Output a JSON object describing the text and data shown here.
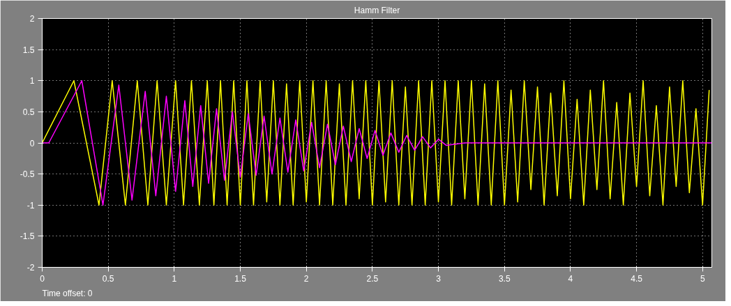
{
  "chart_data": {
    "type": "line",
    "title": "Hamm Filter",
    "annotations": [
      "Time offset:  0"
    ],
    "xlim": [
      0,
      5.07
    ],
    "ylim": [
      -2,
      2
    ],
    "xticks": [
      0,
      0.5,
      1,
      1.5,
      2,
      2.5,
      3,
      3.5,
      4,
      4.5,
      5
    ],
    "yticks": [
      -2,
      -1.5,
      -1,
      -0.5,
      0,
      0.5,
      1,
      1.5,
      2
    ],
    "grid": true,
    "line_style": "solid",
    "marker": "none",
    "series": [
      {
        "color": "#ffff00",
        "x": [
          0,
          0.24,
          0.43,
          0.53,
          0.63,
          0.72,
          0.8,
          0.87,
          0.94,
          1.01,
          1.07,
          1.13,
          1.19,
          1.25,
          1.3,
          1.35,
          1.4,
          1.45,
          1.5,
          1.55,
          1.6,
          1.65,
          1.7,
          1.75,
          1.8,
          1.85,
          1.9,
          1.95,
          2.0,
          2.05,
          2.1,
          2.15,
          2.2,
          2.25,
          2.3,
          2.35,
          2.4,
          2.45,
          2.5,
          2.55,
          2.6,
          2.65,
          2.7,
          2.75,
          2.8,
          2.85,
          2.9,
          2.95,
          3.0,
          3.05,
          3.1,
          3.15,
          3.2,
          3.25,
          3.3,
          3.35,
          3.4,
          3.45,
          3.5,
          3.55,
          3.6,
          3.65,
          3.7,
          3.75,
          3.8,
          3.85,
          3.9,
          3.95,
          4.0,
          4.05,
          4.1,
          4.15,
          4.2,
          4.25,
          4.3,
          4.35,
          4.4,
          4.45,
          4.5,
          4.55,
          4.6,
          4.65,
          4.7,
          4.75,
          4.8,
          4.85,
          4.9,
          4.95,
          5.0,
          5.05
        ],
        "values": [
          0,
          1,
          -1,
          1,
          -1,
          1,
          -1,
          1,
          -1,
          1,
          -1,
          1,
          -1,
          1,
          -1,
          1,
          -1,
          1,
          -1,
          1,
          -1,
          1,
          -0.95,
          1,
          -1,
          0.95,
          -1,
          1,
          -0.95,
          1,
          -1,
          1,
          -1,
          0.95,
          -1,
          1,
          -0.9,
          1,
          -1,
          1,
          -0.95,
          1,
          -1,
          0.9,
          -1,
          1,
          -1,
          1,
          -0.95,
          1,
          -1,
          1,
          -0.9,
          1,
          -1,
          0.95,
          -1,
          1,
          -1,
          0.85,
          -0.95,
          1,
          -0.75,
          0.9,
          -1,
          0.8,
          -0.85,
          1,
          -0.9,
          0.7,
          -1,
          0.85,
          -0.75,
          1,
          -0.9,
          0.65,
          -1,
          0.8,
          -0.7,
          1,
          -0.85,
          0.6,
          -1,
          0.9,
          -0.7,
          1,
          -0.8,
          0.55,
          -1,
          0.85
        ]
      },
      {
        "color": "#ff00ff",
        "x": [
          0,
          0.05,
          0.3,
          0.46,
          0.58,
          0.68,
          0.78,
          0.86,
          0.94,
          1.01,
          1.08,
          1.14,
          1.2,
          1.26,
          1.32,
          1.38,
          1.44,
          1.5,
          1.56,
          1.62,
          1.68,
          1.74,
          1.8,
          1.86,
          1.92,
          1.98,
          2.04,
          2.1,
          2.16,
          2.22,
          2.28,
          2.34,
          2.4,
          2.46,
          2.52,
          2.58,
          2.64,
          2.7,
          2.76,
          2.82,
          2.88,
          2.94,
          3.0,
          3.06,
          3.2,
          5.07
        ],
        "values": [
          0,
          0,
          1,
          -1,
          0.93,
          -0.92,
          0.83,
          -0.85,
          0.75,
          -0.78,
          0.68,
          -0.7,
          0.6,
          -0.65,
          0.55,
          -0.6,
          0.5,
          -0.55,
          0.47,
          -0.52,
          0.43,
          -0.5,
          0.4,
          -0.47,
          0.37,
          -0.45,
          0.33,
          -0.4,
          0.3,
          -0.35,
          0.27,
          -0.3,
          0.23,
          -0.25,
          0.2,
          -0.2,
          0.16,
          -0.15,
          0.12,
          -0.12,
          0.1,
          -0.08,
          0.06,
          -0.04,
          0,
          0
        ]
      }
    ]
  }
}
